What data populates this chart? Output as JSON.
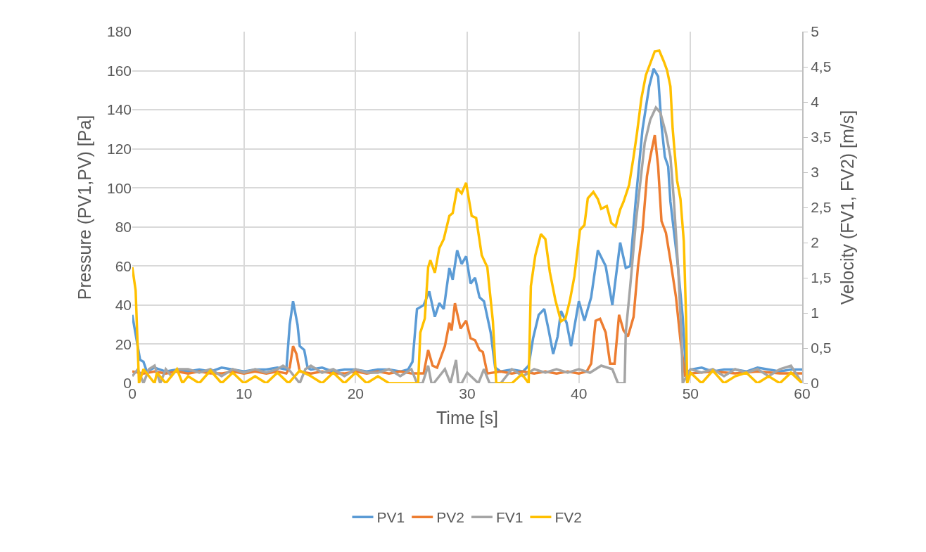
{
  "chart_data": {
    "type": "line",
    "xlabel": "Time [s]",
    "ylabel": "Pressure (PV1,PV) [Pa]",
    "y2label": "Velocity (FV1, FV2) [m/s]",
    "xlim": [
      0,
      60
    ],
    "xticks": [
      0,
      10,
      20,
      30,
      40,
      50,
      60
    ],
    "ylim": [
      0,
      180
    ],
    "yticks": [
      0,
      20,
      40,
      60,
      80,
      100,
      120,
      140,
      160,
      180
    ],
    "y2lim": [
      0,
      5
    ],
    "y2ticks": [
      0,
      {
        "value": 0.5,
        "label": "0,5"
      },
      1,
      {
        "value": 1.5,
        "label": "1,5"
      },
      2,
      {
        "value": 2.5,
        "label": "2,5"
      },
      3,
      {
        "value": 3.5,
        "label": "3,5"
      },
      4,
      {
        "value": 4.5,
        "label": "4,5"
      },
      5
    ],
    "grid": true,
    "legend": "bottom",
    "series": [
      {
        "name": "PV1",
        "color": "#5b9bd5",
        "x": [
          0,
          0.3,
          0.7,
          1.0,
          1.3,
          2,
          3,
          4,
          5,
          6,
          7,
          8,
          9,
          10,
          11,
          12,
          13,
          13.8,
          14.1,
          14.4,
          14.8,
          15.0,
          15.4,
          15.7,
          16,
          17,
          18,
          19,
          20,
          21,
          22,
          23,
          24,
          24.7,
          25.1,
          25.5,
          26.1,
          26.6,
          27.1,
          27.5,
          27.9,
          28.4,
          28.7,
          29.1,
          29.5,
          29.9,
          30.3,
          30.7,
          31.1,
          31.5,
          32.1,
          32.5,
          33,
          34,
          35,
          35.5,
          35.9,
          36.4,
          36.9,
          37.3,
          37.7,
          38.1,
          38.4,
          38.9,
          39.3,
          40.0,
          40.5,
          41.1,
          41.7,
          42.4,
          43.0,
          43.7,
          44.2,
          44.6,
          45.1,
          45.7,
          46.3,
          46.7,
          47.1,
          47.4,
          47.7,
          48.0,
          48.2,
          48.8,
          49.3,
          49.6,
          50,
          51,
          52,
          53,
          54,
          55,
          56,
          57,
          58,
          59,
          60
        ],
        "values": [
          35,
          25,
          12,
          11,
          6,
          8,
          6,
          7,
          6,
          7,
          6,
          8,
          7,
          6,
          7,
          7,
          8,
          7,
          30,
          42,
          30,
          19,
          17,
          8,
          7,
          8,
          6,
          7,
          7,
          6,
          7,
          7,
          6,
          7,
          11,
          38,
          40,
          47,
          34,
          41,
          38,
          59,
          53,
          68,
          61,
          65,
          51,
          54,
          44,
          42,
          26,
          8,
          6,
          7,
          6,
          9,
          23,
          35,
          38,
          27,
          15,
          24,
          37,
          31,
          19,
          42,
          32,
          44,
          68,
          60,
          40,
          72,
          59,
          60,
          94,
          130,
          152,
          161,
          157,
          132,
          116,
          111,
          93,
          64,
          34,
          5,
          7,
          8,
          6,
          7,
          7,
          6,
          8,
          7,
          6,
          7,
          7
        ]
      },
      {
        "name": "PV2",
        "color": "#ed7d31",
        "x": [
          0,
          1,
          2,
          3,
          4,
          5,
          6,
          7,
          8,
          9,
          10,
          11,
          12,
          13,
          13.8,
          14.1,
          14.4,
          14.7,
          15.0,
          16,
          17,
          18,
          19,
          20,
          21,
          22,
          23,
          24,
          25,
          25.8,
          26.1,
          26.5,
          26.9,
          27.3,
          28.0,
          28.4,
          28.6,
          28.9,
          29.4,
          29.9,
          30.3,
          30.7,
          31.1,
          31.4,
          31.8,
          33,
          34,
          35,
          36,
          37,
          38,
          39,
          40,
          40.7,
          41.1,
          41.5,
          41.9,
          42.4,
          42.8,
          43.2,
          43.6,
          44.0,
          44.4,
          44.9,
          45.3,
          45.7,
          46.1,
          46.4,
          46.8,
          47.1,
          47.4,
          47.8,
          48.2,
          48.7,
          49.1,
          49.5,
          50,
          52,
          54,
          56,
          58,
          60
        ],
        "values": [
          6,
          5,
          6,
          5,
          6,
          5,
          6,
          5,
          5,
          6,
          5,
          6,
          5,
          6,
          5,
          8,
          19,
          15,
          6,
          5,
          6,
          5,
          5,
          6,
          5,
          6,
          5,
          6,
          5,
          5,
          5,
          17,
          9,
          8,
          19,
          31,
          27,
          41,
          28,
          32,
          23,
          22,
          17,
          16,
          5,
          6,
          5,
          6,
          5,
          6,
          5,
          6,
          5,
          6,
          10,
          32,
          33,
          26,
          10,
          10,
          35,
          27,
          24,
          34,
          60,
          78,
          106,
          116,
          127,
          111,
          83,
          77,
          63,
          44,
          22,
          4,
          5,
          6,
          5,
          6,
          5,
          5
        ]
      },
      {
        "name": "FV1",
        "color": "#a5a5a5",
        "axis": "y2",
        "x": [
          0,
          0.5,
          1,
          1.5,
          2,
          2.5,
          3,
          3.5,
          4,
          5,
          6,
          7,
          8,
          9,
          10,
          11,
          12,
          13,
          13.5,
          14,
          15,
          15.5,
          16,
          17,
          18,
          19,
          20,
          21,
          22,
          23,
          24,
          25,
          25.5,
          26,
          26.5,
          26.8,
          27,
          28,
          28.5,
          29,
          29.2,
          29.5,
          30,
          31,
          31.5,
          32,
          33,
          34,
          35,
          36,
          37,
          38,
          39,
          40,
          41,
          42,
          43,
          43.5,
          44.1,
          44.2,
          44.6,
          45.1,
          45.9,
          46.4,
          46.9,
          47.3,
          47.8,
          48.2,
          48.5,
          48.9,
          49.2,
          49.3,
          50,
          51,
          52,
          53,
          54,
          55,
          56,
          57,
          58,
          59,
          60
        ],
        "values": [
          0.1,
          0.2,
          0,
          0.2,
          0.25,
          0,
          0.2,
          0.1,
          0.2,
          0.2,
          0.15,
          0.2,
          0.1,
          0.2,
          0.15,
          0.2,
          0.15,
          0.2,
          0.25,
          0.2,
          0,
          0.2,
          0.25,
          0.15,
          0.2,
          0.1,
          0.2,
          0.15,
          0.15,
          0.2,
          0.1,
          0.2,
          0,
          0,
          0.25,
          0,
          0,
          0.2,
          0,
          0.33,
          0,
          0,
          0.15,
          0,
          0.2,
          0,
          0,
          0.2,
          0.1,
          0.2,
          0.15,
          0.2,
          0.15,
          0.2,
          0.15,
          0.25,
          0.2,
          0,
          0,
          0.72,
          1.38,
          2.28,
          3.42,
          3.75,
          3.92,
          3.85,
          3.55,
          3.22,
          2.62,
          1.62,
          0.62,
          0,
          0.2,
          0.15,
          0.2,
          0.1,
          0.2,
          0.15,
          0.2,
          0.1,
          0.2,
          0.25,
          0
        ]
      },
      {
        "name": "FV2",
        "color": "#ffc000",
        "axis": "y2",
        "x": [
          0,
          0.3,
          0.6,
          1,
          2,
          2.2,
          3,
          4,
          4.5,
          5,
          6,
          7,
          8,
          9,
          10,
          11,
          12,
          13,
          14,
          15,
          16,
          17,
          18,
          19,
          20,
          21,
          22,
          23,
          24,
          25,
          25.6,
          25.8,
          26.2,
          26.5,
          26.7,
          27.1,
          27.5,
          27.9,
          28.4,
          28.7,
          29.1,
          29.5,
          29.9,
          30.4,
          30.8,
          31.3,
          31.8,
          32.3,
          32.6,
          33,
          34,
          34.9,
          35.5,
          35.7,
          36.1,
          36.6,
          37.0,
          37.4,
          37.9,
          38.4,
          38.8,
          39.2,
          39.6,
          40.1,
          40.5,
          40.8,
          41.3,
          41.7,
          42.0,
          42.5,
          42.9,
          43.3,
          43.7,
          44.0,
          44.5,
          44.9,
          45.2,
          45.6,
          46.0,
          46.4,
          46.8,
          47.2,
          47.6,
          47.9,
          48.2,
          48.4,
          48.8,
          49.1,
          49.4,
          49.6,
          49.7,
          50,
          51,
          52,
          53,
          54,
          55,
          56,
          57,
          58,
          59,
          60
        ],
        "values": [
          1.65,
          1.32,
          0,
          0.2,
          0,
          0.15,
          0,
          0.2,
          0,
          0.1,
          0,
          0.18,
          0,
          0.15,
          0,
          0.1,
          0,
          0.15,
          0,
          0.18,
          0.1,
          0,
          0.15,
          0,
          0.15,
          0,
          0.1,
          0,
          0,
          0,
          0,
          0.72,
          0.92,
          1.65,
          1.75,
          1.57,
          1.92,
          2.05,
          2.38,
          2.42,
          2.77,
          2.7,
          2.85,
          2.38,
          2.35,
          1.82,
          1.65,
          0.88,
          0,
          0,
          0,
          0.13,
          0,
          1.38,
          1.82,
          2.12,
          2.05,
          1.58,
          1.18,
          0.88,
          0.92,
          1.18,
          1.52,
          2.18,
          2.25,
          2.63,
          2.72,
          2.62,
          2.48,
          2.52,
          2.28,
          2.23,
          2.47,
          2.58,
          2.82,
          3.22,
          3.55,
          4.05,
          4.38,
          4.55,
          4.72,
          4.73,
          4.58,
          4.45,
          4.22,
          3.62,
          2.88,
          2.62,
          2.02,
          0.95,
          0,
          0.15,
          0,
          0.18,
          0,
          0.1,
          0.15,
          0,
          0.1,
          0,
          0.15,
          0
        ]
      }
    ]
  }
}
